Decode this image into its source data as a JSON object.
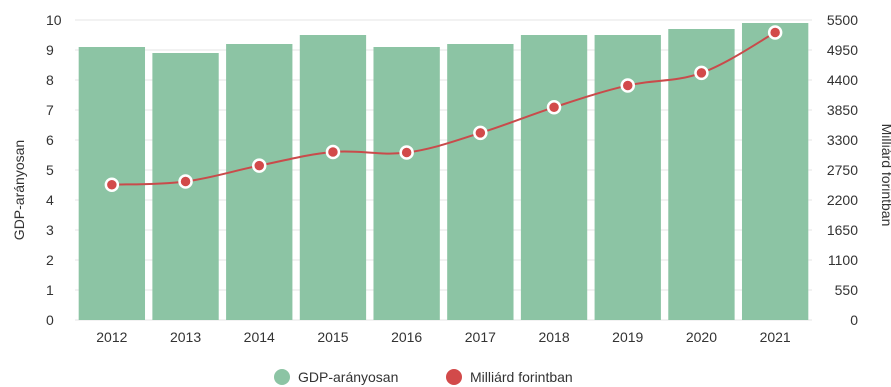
{
  "chart_data": {
    "type": "bar",
    "categories": [
      "2012",
      "2013",
      "2014",
      "2015",
      "2016",
      "2017",
      "2018",
      "2019",
      "2020",
      "2021"
    ],
    "series": [
      {
        "name": "GDP-arányosan",
        "type": "bar",
        "axis": "left",
        "values": [
          9.1,
          8.9,
          9.2,
          9.5,
          9.1,
          9.2,
          9.5,
          9.5,
          9.7,
          9.9
        ]
      },
      {
        "name": "Milliárd forintban",
        "type": "line",
        "axis": "right",
        "values": [
          2480,
          2540,
          2830,
          3080,
          3070,
          3430,
          3900,
          4300,
          4530,
          5270
        ]
      }
    ],
    "ylabel_left": "GDP-arányosan",
    "ylabel_right": "Milliárd forintban",
    "ylim_left": [
      0,
      10
    ],
    "ylim_right": [
      0,
      5500
    ],
    "yticks_left": [
      "0",
      "1",
      "2",
      "3",
      "4",
      "5",
      "6",
      "7",
      "8",
      "9",
      "10"
    ],
    "yticks_right": [
      "0",
      "550",
      "1100",
      "1650",
      "2200",
      "2750",
      "3300",
      "3850",
      "4400",
      "4950",
      "5500"
    ],
    "legend_position": "bottom-center",
    "grid": true,
    "colors": {
      "bar": "#8cc4a4",
      "line": "#c94b4b",
      "point": "#d24a4a",
      "grid": "#e6e6e6"
    }
  }
}
